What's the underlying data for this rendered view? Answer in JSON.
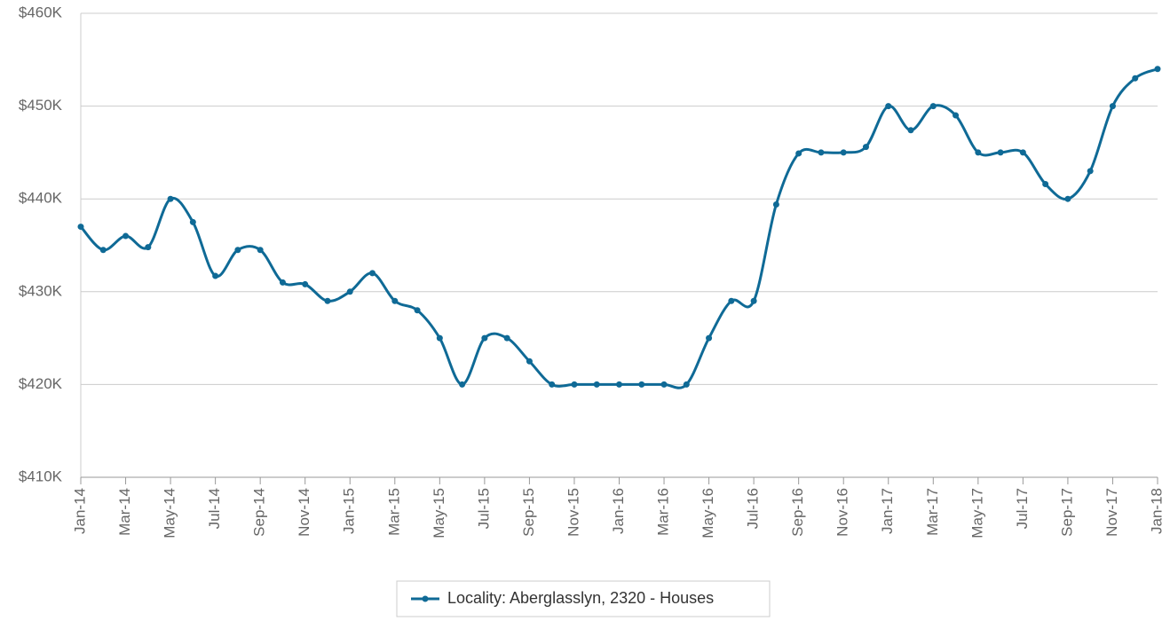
{
  "chart_data": {
    "type": "line",
    "categories": [
      "Jan-14",
      null,
      "Mar-14",
      null,
      "May-14",
      null,
      "Jul-14",
      null,
      "Sep-14",
      null,
      "Nov-14",
      null,
      "Jan-15",
      null,
      "Mar-15",
      null,
      "May-15",
      null,
      "Jul-15",
      null,
      "Sep-15",
      null,
      "Nov-15",
      null,
      "Jan-16",
      null,
      "Mar-16",
      null,
      "May-16",
      null,
      "Jul-16",
      null,
      "Sep-16",
      null,
      "Nov-16",
      null,
      "Jan-17",
      null,
      "Mar-17",
      null,
      "May-17",
      null,
      "Jul-17",
      null,
      "Sep-17",
      null,
      "Nov-17",
      null,
      "Jan-18"
    ],
    "series": [
      {
        "name": "Locality: Aberglasslyn, 2320 - Houses",
        "color": "#0f6a96",
        "values": [
          437000,
          434500,
          436000,
          434800,
          440000,
          437500,
          431700,
          434500,
          434500,
          431000,
          430800,
          429000,
          430000,
          432000,
          429000,
          428000,
          425000,
          420000,
          425000,
          425000,
          422500,
          420000,
          420000,
          420000,
          420000,
          420000,
          420000,
          420000,
          425000,
          429000,
          429000,
          439400,
          444900,
          445000,
          445000,
          445600,
          450000,
          447400,
          450000,
          449000,
          445000,
          445000,
          445000,
          441600,
          440000,
          443000,
          450000,
          453000,
          454000
        ]
      }
    ],
    "ylim": [
      410000,
      460000
    ],
    "yticks": [
      {
        "value": 410000,
        "label": "$410K"
      },
      {
        "value": 420000,
        "label": "$420K"
      },
      {
        "value": 430000,
        "label": "$430K"
      },
      {
        "value": 440000,
        "label": "$440K"
      },
      {
        "value": 450000,
        "label": "$450K"
      },
      {
        "value": 460000,
        "label": "$460K"
      }
    ],
    "grid": true,
    "legend": "bottom"
  }
}
